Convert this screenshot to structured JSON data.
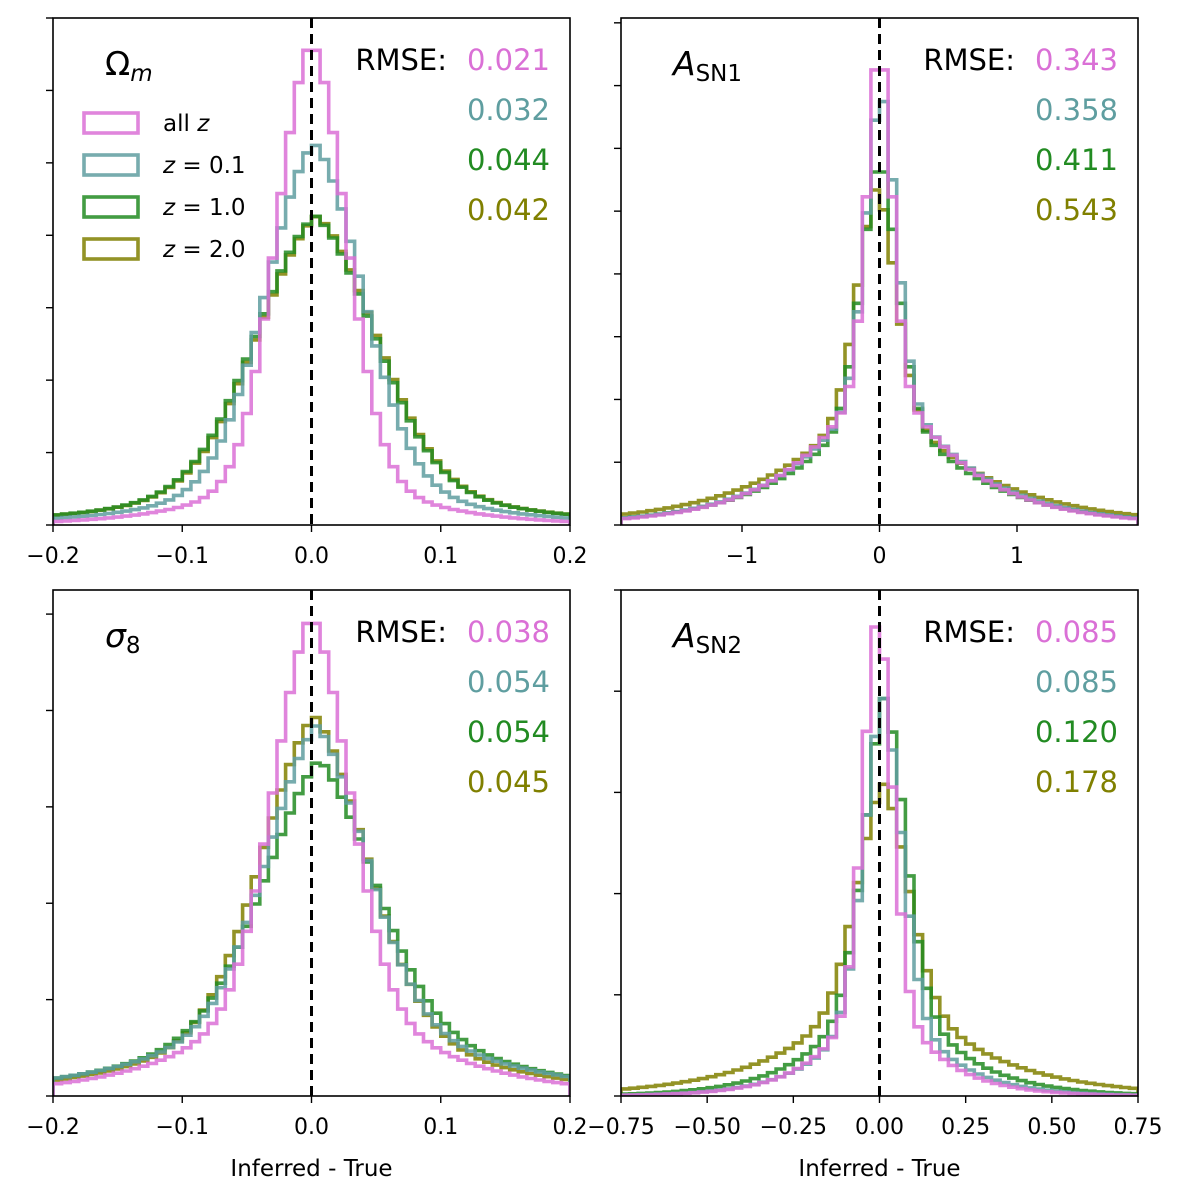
{
  "legend": {
    "entries": [
      {
        "label": "all z",
        "color": "#da70d6"
      },
      {
        "label": "z = 0.1",
        "color": "#5f9ea0"
      },
      {
        "label": "z = 1.0",
        "color": "#228b22"
      },
      {
        "label": "z = 2.0",
        "color": "#808000"
      }
    ]
  },
  "colors": {
    "all": "#da70d6",
    "z01": "#5f9ea0",
    "z10": "#228b22",
    "z20": "#808000",
    "truth_line": "#000000"
  },
  "chart_data": [
    {
      "type": "step-histogram",
      "title": "Ωm",
      "xlabel": "",
      "xlim": [
        -0.2,
        0.2
      ],
      "xticks": [
        -0.2,
        -0.1,
        0.0,
        0.1,
        0.2
      ],
      "xtick_labels": [
        "−0.2",
        "−0.1",
        "0.0",
        "0.1",
        "0.2"
      ],
      "ylim": [
        0,
        1.05
      ],
      "y_ticks": [
        0.15,
        0.3,
        0.45,
        0.6,
        0.75,
        0.9,
        1.05
      ],
      "truth": 0.0,
      "rmse_label": "RMSE:",
      "rmse": [
        "0.021",
        "0.032",
        "0.044",
        "0.042"
      ],
      "series": [
        {
          "name": "all z",
          "color": "#da70d6",
          "center": 0.0,
          "width": 0.027,
          "tail": 0.2,
          "tail_width": 0.06,
          "peak": 1.0
        },
        {
          "name": "z = 0.1",
          "color": "#5f9ea0",
          "center": 0.002,
          "width": 0.038,
          "tail": 0.25,
          "tail_width": 0.075,
          "peak": 0.79
        },
        {
          "name": "z = 1.0",
          "color": "#228b22",
          "center": 0.003,
          "width": 0.047,
          "tail": 0.3,
          "tail_width": 0.09,
          "peak": 0.64
        },
        {
          "name": "z = 2.0",
          "color": "#808000",
          "center": 0.004,
          "width": 0.047,
          "tail": 0.3,
          "tail_width": 0.09,
          "peak": 0.64
        }
      ]
    },
    {
      "type": "step-histogram",
      "title": "ASN1",
      "xlabel": "",
      "xlim": [
        -1.88,
        1.88
      ],
      "xticks": [
        -1,
        0,
        1
      ],
      "xtick_labels": [
        "−1",
        "0",
        "1"
      ],
      "ylim": [
        0,
        1.05
      ],
      "y_ticks": [
        0.13,
        0.26,
        0.39,
        0.52,
        0.65,
        0.78,
        0.91,
        1.04
      ],
      "truth": 0.0,
      "rmse_label": "RMSE:",
      "rmse": [
        "0.343",
        "0.358",
        "0.411",
        "0.543"
      ],
      "series": [
        {
          "name": "all z",
          "color": "#da70d6",
          "center": 0.0,
          "width": 0.09,
          "tail": 0.38,
          "tail_width": 0.55,
          "peak": 1.0
        },
        {
          "name": "z = 0.1",
          "color": "#5f9ea0",
          "center": 0.01,
          "width": 0.11,
          "tail": 0.4,
          "tail_width": 0.58,
          "peak": 0.9
        },
        {
          "name": "z = 1.0",
          "color": "#228b22",
          "center": 0.0,
          "width": 0.13,
          "tail": 0.42,
          "tail_width": 0.6,
          "peak": 0.76
        },
        {
          "name": "z = 2.0",
          "color": "#808000",
          "center": -0.02,
          "width": 0.14,
          "tail": 0.44,
          "tail_width": 0.7,
          "peak": 0.7
        }
      ]
    },
    {
      "type": "step-histogram",
      "title": "σ8",
      "xlabel": "Inferred - True",
      "xlim": [
        -0.2,
        0.2
      ],
      "xticks": [
        -0.2,
        -0.1,
        0.0,
        0.1,
        0.2
      ],
      "xtick_labels": [
        "−0.2",
        "−0.1",
        "0.0",
        "0.1",
        "0.2"
      ],
      "ylim": [
        0,
        1.05
      ],
      "y_ticks": [
        0.2,
        0.4,
        0.6,
        0.8,
        1.0
      ],
      "truth": 0.0,
      "rmse_label": "RMSE:",
      "rmse": [
        "0.038",
        "0.054",
        "0.054",
        "0.045"
      ],
      "series": [
        {
          "name": "all z",
          "color": "#da70d6",
          "center": 0.0,
          "width": 0.03,
          "tail": 0.35,
          "tail_width": 0.075,
          "peak": 1.0
        },
        {
          "name": "z = 0.1",
          "color": "#5f9ea0",
          "center": 0.004,
          "width": 0.04,
          "tail": 0.4,
          "tail_width": 0.095,
          "peak": 0.77
        },
        {
          "name": "z = 1.0",
          "color": "#228b22",
          "center": 0.006,
          "width": 0.045,
          "tail": 0.45,
          "tail_width": 0.095,
          "peak": 0.7
        },
        {
          "name": "z = 2.0",
          "color": "#808000",
          "center": 0.002,
          "width": 0.042,
          "tail": 0.38,
          "tail_width": 0.09,
          "peak": 0.79
        }
      ]
    },
    {
      "type": "step-histogram",
      "title": "ASN2",
      "xlabel": "Inferred - True",
      "xlim": [
        -0.75,
        0.75
      ],
      "xticks": [
        -0.75,
        -0.5,
        -0.25,
        0.0,
        0.25,
        0.5,
        0.75
      ],
      "xtick_labels": [
        "−0.75",
        "−0.50",
        "−0.25",
        "0.00",
        "0.25",
        "0.50",
        "0.75"
      ],
      "ylim": [
        0,
        1.05
      ],
      "y_ticks": [
        0.21,
        0.42,
        0.63,
        0.84,
        1.05
      ],
      "truth": 0.0,
      "rmse_label": "RMSE:",
      "rmse": [
        "0.085",
        "0.085",
        "0.120",
        "0.178"
      ],
      "series": [
        {
          "name": "all z",
          "color": "#da70d6",
          "center": -0.005,
          "width": 0.042,
          "tail": 0.3,
          "tail_width": 0.14,
          "peak": 1.0
        },
        {
          "name": "z = 0.1",
          "color": "#5f9ea0",
          "center": 0.01,
          "width": 0.055,
          "tail": 0.35,
          "tail_width": 0.15,
          "peak": 0.83
        },
        {
          "name": "z = 1.0",
          "color": "#228b22",
          "center": 0.015,
          "width": 0.06,
          "tail": 0.4,
          "tail_width": 0.17,
          "peak": 0.83
        },
        {
          "name": "z = 2.0",
          "color": "#808000",
          "center": 0.01,
          "width": 0.075,
          "tail": 0.45,
          "tail_width": 0.25,
          "peak": 0.65
        }
      ]
    }
  ]
}
